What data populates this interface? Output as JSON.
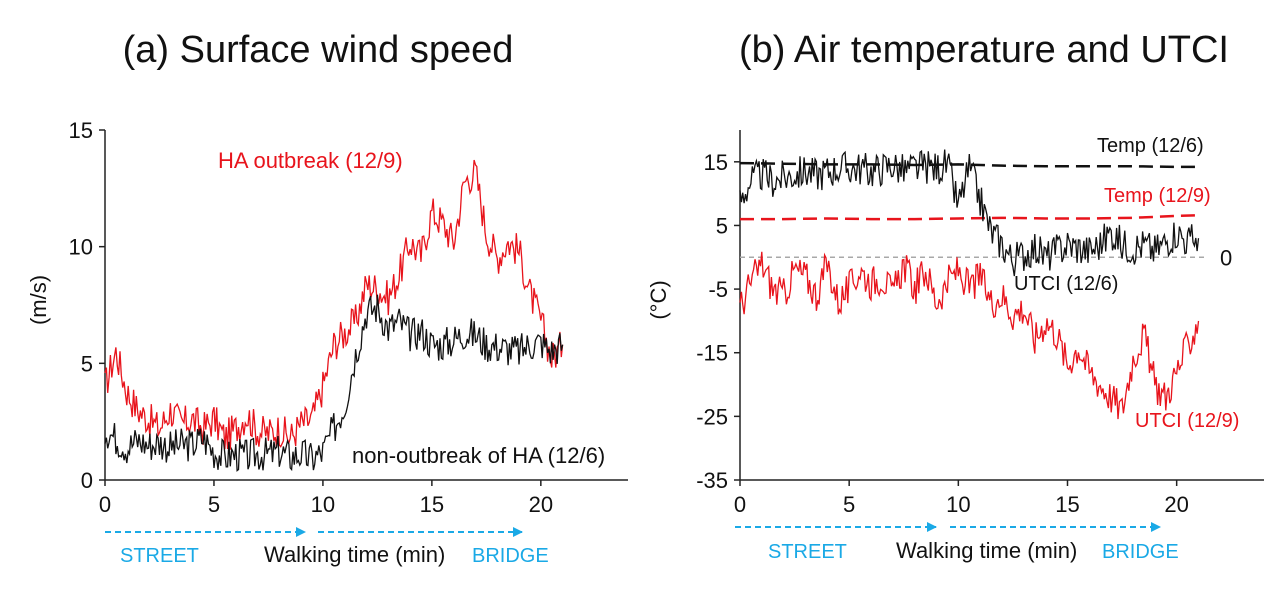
{
  "colors": {
    "red": "#e8141c",
    "black": "#111111",
    "blue": "#1aa9e6",
    "gray": "#a8a8a8"
  },
  "panels": {
    "a": {
      "title": "(a)  Surface wind speed",
      "street": "STREET",
      "walking": "Walking time (min)",
      "bridge": "BRIDGE"
    },
    "b": {
      "title": "(b)  Air temperature and UTCI",
      "street": "STREET",
      "walking": "Walking time (min)",
      "bridge": "BRIDGE"
    }
  },
  "chart_data": [
    {
      "type": "line",
      "title": "(a)  Surface wind speed",
      "xlabel": "Walking time (min)",
      "ylabel": "(m/s)",
      "xlim": [
        0,
        24
      ],
      "ylim": [
        0,
        15
      ],
      "xticks": [
        0,
        5,
        10,
        15,
        20
      ],
      "yticks": [
        0,
        5,
        10,
        15
      ],
      "grid": false,
      "annotations": [
        "HA outbreak (12/9)",
        "non-outbreak of HA (12/6)",
        "STREET",
        "BRIDGE"
      ],
      "series": [
        {
          "name": "HA outbreak (12/9)",
          "color": "#e8141c",
          "x": [
            0,
            0.5,
            1,
            1.5,
            2,
            2.5,
            3,
            3.5,
            4,
            4.5,
            5,
            5.5,
            6,
            6.5,
            7,
            7.5,
            8,
            8.5,
            9,
            9.5,
            10,
            10.5,
            11,
            11.5,
            12,
            12.5,
            13,
            13.5,
            14,
            14.5,
            15,
            15.5,
            16,
            16.5,
            17,
            17.5,
            18,
            18.5,
            19,
            19.5,
            20,
            20.5,
            21
          ],
          "y": [
            4,
            5.5,
            3.8,
            3,
            2.6,
            2.2,
            3,
            2.4,
            2.6,
            2.2,
            2.6,
            1.8,
            2.2,
            2.8,
            2.1,
            2,
            2.2,
            1.8,
            2.4,
            2.6,
            4,
            5.8,
            6.3,
            6.8,
            8.4,
            8.2,
            7.8,
            8.8,
            10.2,
            9.6,
            11.5,
            11,
            10.2,
            12.8,
            13.2,
            10.6,
            9.5,
            10.2,
            9.8,
            8,
            6.8,
            5.2,
            5.8
          ]
        },
        {
          "name": "non-outbreak of HA (12/6)",
          "color": "#111111",
          "x": [
            0,
            0.5,
            1,
            1.5,
            2,
            2.5,
            3,
            3.5,
            4,
            4.5,
            5,
            5.5,
            6,
            6.5,
            7,
            7.5,
            8,
            8.5,
            9,
            9.5,
            10,
            10.5,
            11,
            11.5,
            12,
            12.5,
            13,
            13.5,
            14,
            14.5,
            15,
            15.5,
            16,
            16.5,
            17,
            17.5,
            18,
            18.5,
            19,
            19.5,
            20,
            20.5,
            21
          ],
          "y": [
            2.2,
            1.8,
            1.4,
            1.7,
            1.5,
            1.6,
            1.4,
            1.5,
            1.5,
            1.8,
            1.2,
            1,
            1.1,
            1,
            1.1,
            1.1,
            1.2,
            1,
            1.1,
            0.9,
            1.2,
            2.2,
            3.2,
            5.4,
            7.2,
            7.4,
            6.5,
            6.8,
            6.2,
            6.4,
            5.8,
            5.8,
            6,
            6.3,
            6.2,
            5.8,
            5.7,
            5.6,
            5.5,
            5.8,
            5.9,
            5.5,
            5.8
          ]
        }
      ]
    },
    {
      "type": "line",
      "title": "(b)  Air temperature and UTCI",
      "xlabel": "Walking time (min)",
      "ylabel": "(°C)",
      "xlim": [
        0,
        24
      ],
      "ylim": [
        -35,
        20
      ],
      "xticks": [
        0,
        5,
        10,
        15,
        20
      ],
      "yticks": [
        -35,
        -25,
        -15,
        -5,
        5,
        15
      ],
      "grid": false,
      "reference_line": {
        "y": 0,
        "label": "0"
      },
      "annotations": [
        "Temp (12/6)",
        "Temp (12/9)",
        "UTCI (12/6)",
        "UTCI (12/9)",
        "STREET",
        "BRIDGE"
      ],
      "series": [
        {
          "name": "Temp (12/6)",
          "style": "dashed",
          "color": "#111111",
          "x": [
            0,
            2,
            4,
            6,
            8,
            10,
            12,
            14,
            16,
            18,
            20,
            21
          ],
          "y": [
            14.8,
            14.7,
            14.6,
            14.6,
            14.5,
            14.6,
            14.4,
            14.3,
            14.3,
            14.3,
            14.2,
            14.2
          ]
        },
        {
          "name": "Temp (12/9)",
          "style": "dashed",
          "color": "#e8141c",
          "x": [
            0,
            2,
            4,
            6,
            8,
            10,
            12,
            14,
            16,
            18,
            20,
            21
          ],
          "y": [
            6,
            6,
            6.1,
            6,
            6,
            6.1,
            6.2,
            6.1,
            6.1,
            6.2,
            6.5,
            6.6
          ]
        },
        {
          "name": "UTCI (12/6)",
          "color": "#111111",
          "x": [
            0,
            0.5,
            1,
            1.5,
            2,
            2.5,
            3,
            3.5,
            4,
            4.5,
            5,
            5.5,
            6,
            6.5,
            7,
            7.5,
            8,
            8.5,
            9,
            9.5,
            10,
            10.5,
            11,
            11.5,
            12,
            12.5,
            13,
            13.5,
            14,
            14.5,
            15,
            15.5,
            16,
            16.5,
            17,
            17.5,
            18,
            18.5,
            19,
            19.5,
            20,
            20.5,
            21
          ],
          "y": [
            9,
            12,
            13,
            12,
            12.5,
            13,
            13.5,
            13,
            13.5,
            14,
            14,
            14,
            13.5,
            14,
            14.5,
            13.5,
            14,
            14.2,
            14,
            14.5,
            8,
            14,
            9,
            4,
            2,
            -0.5,
            0.5,
            1.5,
            0,
            1,
            2,
            1.5,
            1,
            2,
            4,
            2,
            1.5,
            2,
            1,
            2.5,
            4,
            2.5,
            3
          ]
        },
        {
          "name": "UTCI (12/9)",
          "color": "#e8141c",
          "x": [
            0,
            0.5,
            1,
            1.5,
            2,
            2.5,
            3,
            3.5,
            4,
            4.5,
            5,
            5.5,
            6,
            6.5,
            7,
            7.5,
            8,
            8.5,
            9,
            9.5,
            10,
            10.5,
            11,
            11.5,
            12,
            12.5,
            13,
            13.5,
            14,
            14.5,
            15,
            15.5,
            16,
            16.5,
            17,
            17.5,
            18,
            18.5,
            19,
            19.5,
            20,
            20.5,
            21
          ],
          "y": [
            -8,
            -4,
            -1,
            -5,
            -6,
            -2,
            -3,
            -6,
            -1,
            -7,
            -5,
            -2,
            -4,
            -3,
            -6,
            -1,
            -5,
            -2,
            -7,
            -4,
            -2,
            -5,
            -3,
            -7,
            -6,
            -9,
            -8,
            -13,
            -10,
            -12,
            -17,
            -14,
            -18,
            -20,
            -22,
            -24,
            -16,
            -12,
            -20,
            -22,
            -18,
            -14,
            -10
          ]
        }
      ]
    }
  ]
}
